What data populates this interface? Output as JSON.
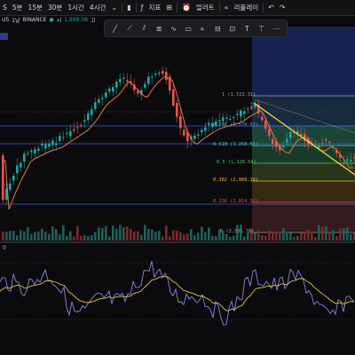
{
  "topbar": {
    "symbol_fragment": "S",
    "intervals": [
      "5분",
      "15분",
      "30분",
      "1시간",
      "4시간"
    ],
    "chart_type_icon": "candles-icon",
    "indicator_icon": "fx-icon",
    "indicators_label": "지표",
    "layout_icon": "grid-icon",
    "alert_label": "얼러트",
    "replay_label": "리플레이",
    "undo_icon": "undo-icon",
    "redo_icon": "redo-icon"
  },
  "infoline": {
    "pair": "US",
    "interval": "1날",
    "exchange": "BINANCE",
    "open_label": "시",
    "open_value": "1,999.08",
    "extra": "고"
  },
  "drawing_toolbar": {
    "tools": [
      "trendline-icon",
      "horizontal-ray-icon",
      "parallel-channel-icon",
      "fib-retracement-icon",
      "brush-icon",
      "rectangle-icon",
      "path-icon",
      "long-position-icon",
      "measure-icon",
      "text-icon",
      "anchored-text-icon",
      "more-icon"
    ]
  },
  "fib_levels": [
    {
      "label": "1 (1,723.31)",
      "color": "#9aa0a6"
    },
    {
      "label": "0.786 (1,570.57)",
      "color": "#6fa0c8"
    },
    {
      "label": "0.618 (1,268.91)",
      "color": "#4dd0a8"
    },
    {
      "label": "0.5 (1,128.54)",
      "color": "#58c46a"
    },
    {
      "label": "0.382 (2,988.18)",
      "color": "#f0b429"
    },
    {
      "label": "0.236 (2,814.51)",
      "color": "#e0503f"
    },
    {
      "label": "0 (2,531.78)",
      "color": "#9aa0a6"
    }
  ],
  "indicator_pane": {
    "label": "0"
  },
  "colors": {
    "up": "#26a69a",
    "down": "#ef5350",
    "ma_line": "#e0794a",
    "trendline": "#f5e04a",
    "rsi_line": "#8a86d8",
    "signal_line": "#e6c04a",
    "hline_blue": "#3b5bd6"
  }
}
